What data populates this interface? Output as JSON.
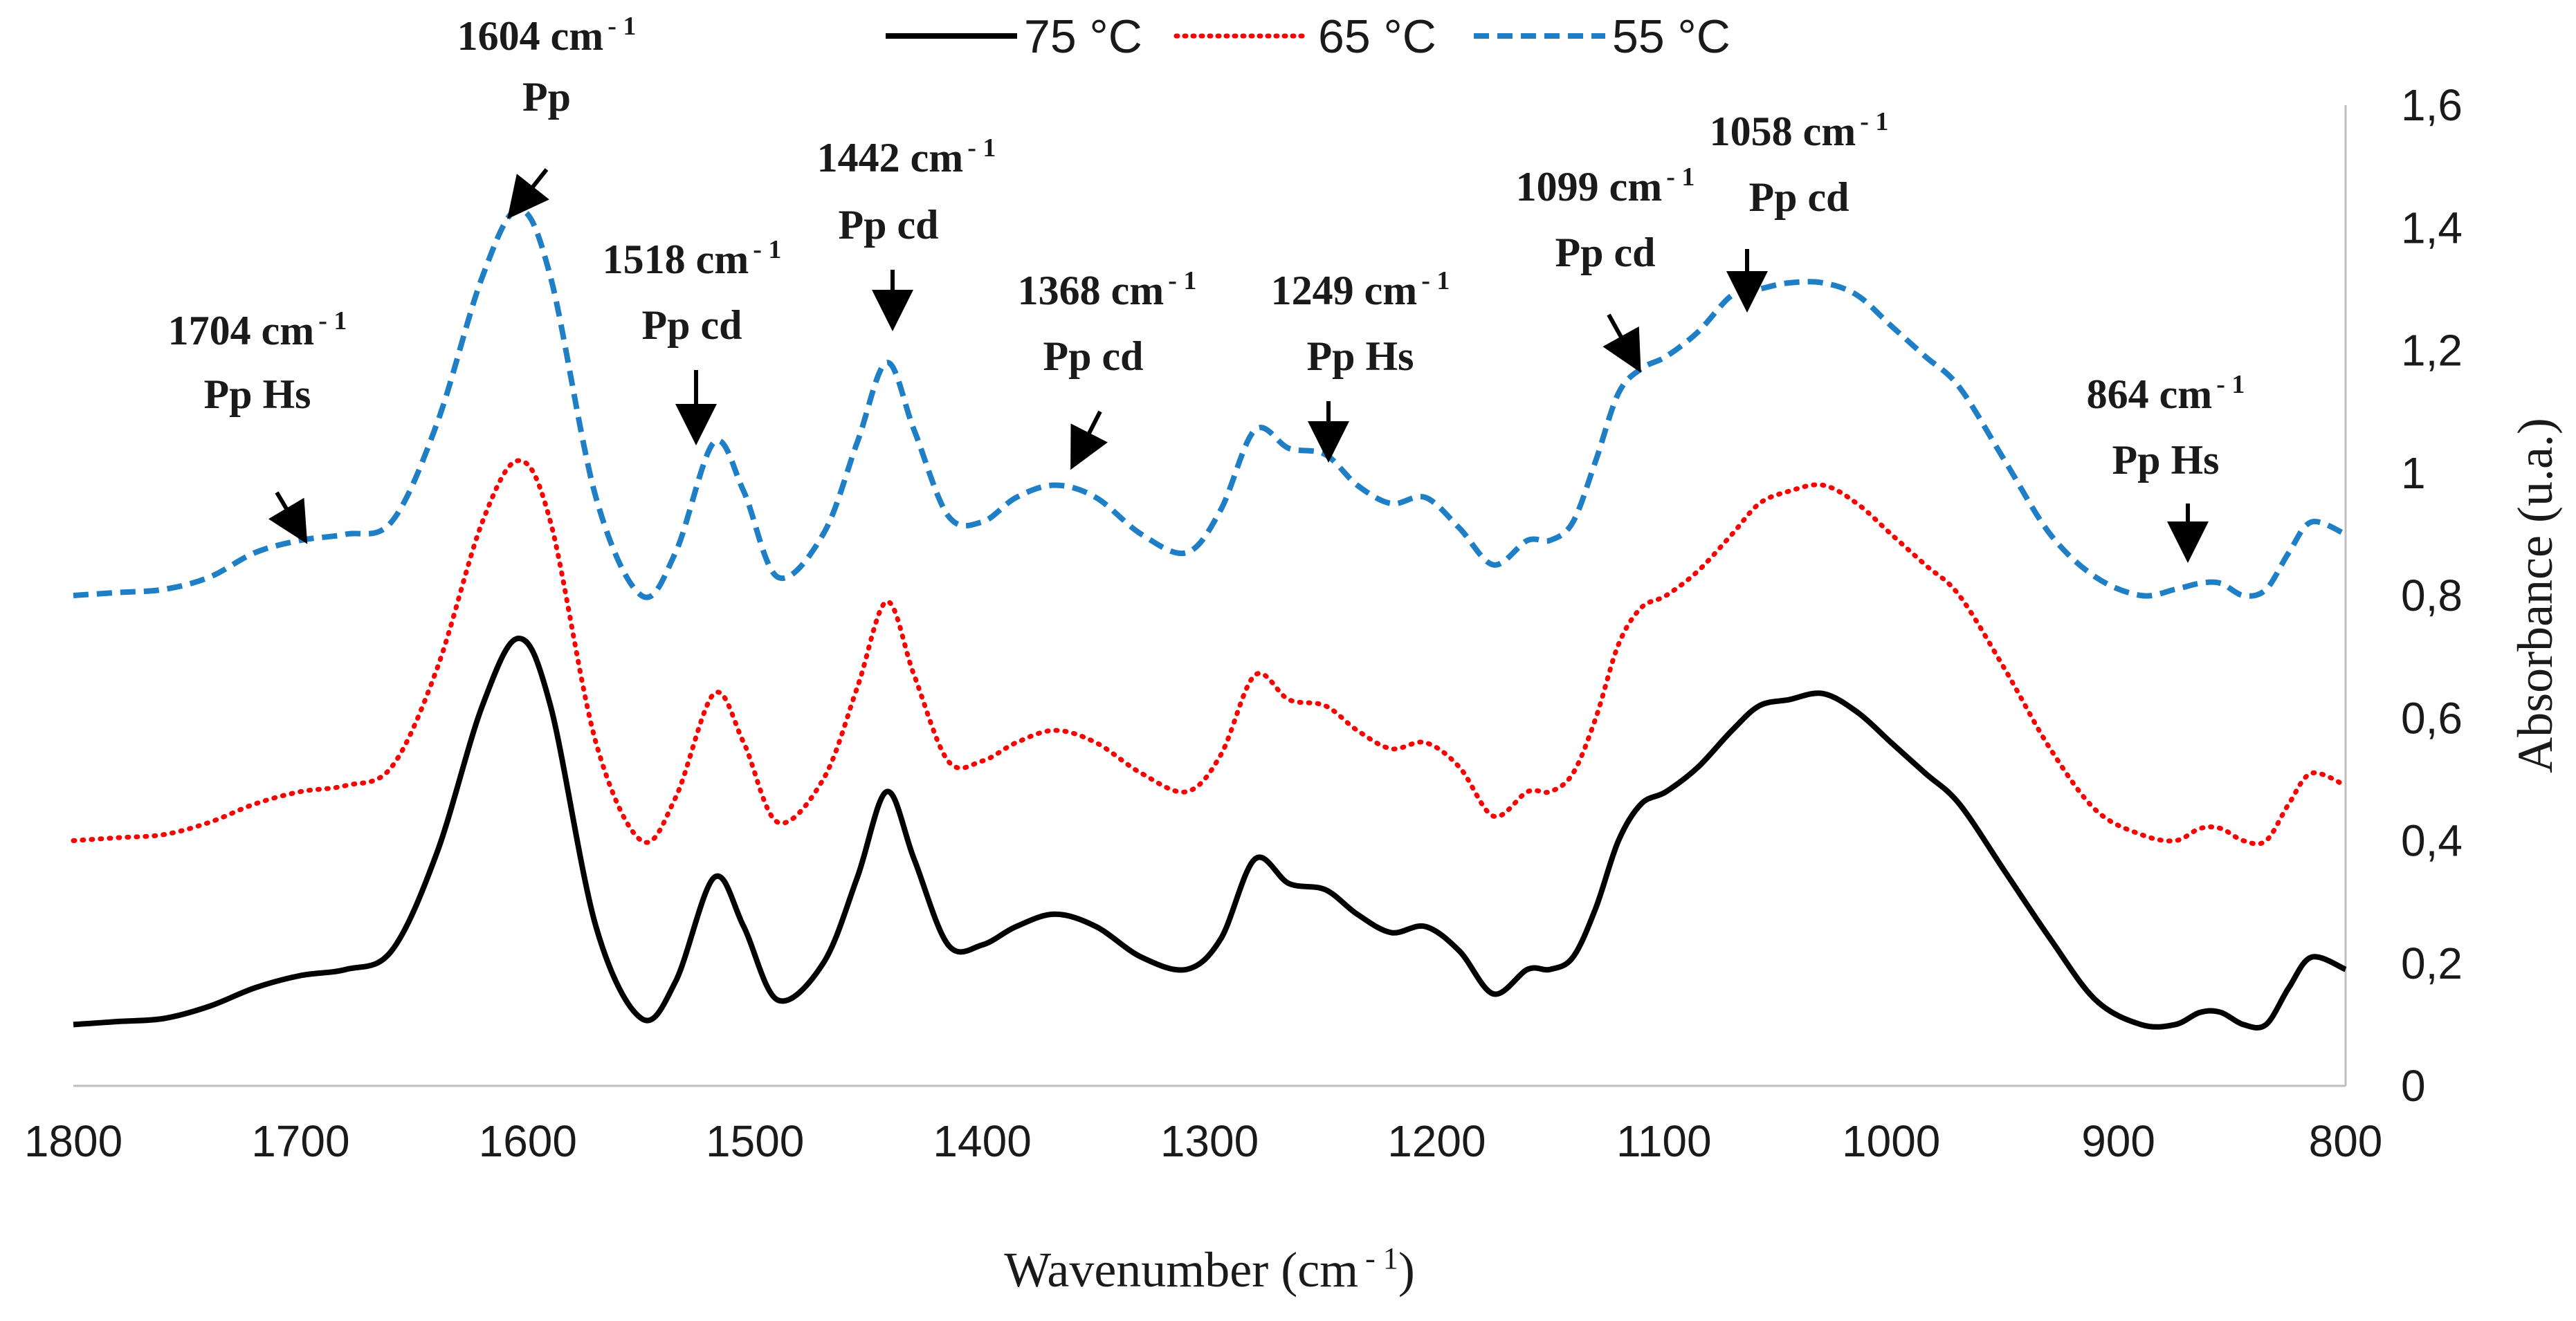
{
  "chart_data": {
    "type": "line",
    "title": "",
    "xlabel": "Wavenumber (cm",
    "xlabel_sup": "- 1",
    "xlabel_close": ")",
    "ylabel": "Absorbance (u.a.)",
    "xlim": [
      1800,
      800
    ],
    "ylim": [
      0,
      1.6
    ],
    "x_ticks": [
      "1800",
      "1700",
      "1600",
      "1500",
      "1400",
      "1300",
      "1200",
      "1100",
      "1000",
      "900",
      "800"
    ],
    "y_ticks": [
      "0",
      "0,2",
      "0,4",
      "0,6",
      "0,8",
      "1",
      "1,2",
      "1,4",
      "1,6"
    ],
    "grid": false,
    "legend_position": "top",
    "series": [
      {
        "name": "75 °C",
        "color": "#000000",
        "style": "solid",
        "x": [
          1800,
          1780,
          1760,
          1740,
          1720,
          1700,
          1680,
          1660,
          1640,
          1620,
          1604,
          1590,
          1570,
          1550,
          1535,
          1518,
          1505,
          1490,
          1470,
          1455,
          1442,
          1430,
          1415,
          1400,
          1385,
          1368,
          1350,
          1330,
          1310,
          1295,
          1280,
          1265,
          1249,
          1235,
          1220,
          1205,
          1190,
          1175,
          1160,
          1150,
          1140,
          1130,
          1120,
          1110,
          1099,
          1085,
          1070,
          1058,
          1045,
          1030,
          1015,
          1000,
          985,
          970,
          950,
          930,
          910,
          890,
          875,
          864,
          855,
          845,
          835,
          825,
          815,
          800
        ],
        "values": [
          0.1,
          0.105,
          0.11,
          0.13,
          0.16,
          0.18,
          0.19,
          0.22,
          0.38,
          0.62,
          0.73,
          0.62,
          0.26,
          0.11,
          0.17,
          0.34,
          0.26,
          0.14,
          0.2,
          0.34,
          0.48,
          0.37,
          0.23,
          0.23,
          0.26,
          0.28,
          0.26,
          0.21,
          0.19,
          0.24,
          0.37,
          0.33,
          0.32,
          0.28,
          0.25,
          0.26,
          0.22,
          0.15,
          0.19,
          0.19,
          0.21,
          0.29,
          0.4,
          0.46,
          0.48,
          0.52,
          0.58,
          0.62,
          0.63,
          0.64,
          0.61,
          0.56,
          0.51,
          0.46,
          0.35,
          0.24,
          0.14,
          0.1,
          0.1,
          0.12,
          0.12,
          0.1,
          0.1,
          0.16,
          0.21,
          0.19
        ]
      },
      {
        "name": "65 °C",
        "color": "#ff0000",
        "style": "dotted",
        "x": [
          1800,
          1780,
          1760,
          1740,
          1720,
          1700,
          1680,
          1660,
          1640,
          1620,
          1604,
          1590,
          1570,
          1550,
          1535,
          1518,
          1505,
          1490,
          1470,
          1455,
          1442,
          1430,
          1415,
          1400,
          1385,
          1368,
          1350,
          1330,
          1310,
          1295,
          1280,
          1265,
          1249,
          1235,
          1220,
          1205,
          1190,
          1175,
          1160,
          1150,
          1140,
          1130,
          1120,
          1110,
          1099,
          1085,
          1070,
          1058,
          1045,
          1030,
          1015,
          1000,
          985,
          970,
          950,
          930,
          910,
          890,
          875,
          864,
          855,
          845,
          835,
          825,
          815,
          800
        ],
        "values": [
          0.4,
          0.405,
          0.41,
          0.43,
          0.46,
          0.48,
          0.49,
          0.52,
          0.68,
          0.92,
          1.02,
          0.92,
          0.56,
          0.4,
          0.47,
          0.64,
          0.56,
          0.43,
          0.5,
          0.65,
          0.79,
          0.67,
          0.53,
          0.53,
          0.56,
          0.58,
          0.56,
          0.51,
          0.48,
          0.54,
          0.67,
          0.63,
          0.62,
          0.58,
          0.55,
          0.56,
          0.52,
          0.44,
          0.48,
          0.48,
          0.51,
          0.6,
          0.72,
          0.78,
          0.8,
          0.84,
          0.9,
          0.95,
          0.97,
          0.98,
          0.95,
          0.9,
          0.85,
          0.8,
          0.68,
          0.55,
          0.45,
          0.41,
          0.4,
          0.42,
          0.42,
          0.4,
          0.4,
          0.46,
          0.51,
          0.49
        ]
      },
      {
        "name": "55 °C",
        "color": "#1f7fc6",
        "style": "dashed",
        "x": [
          1800,
          1780,
          1760,
          1740,
          1720,
          1700,
          1680,
          1660,
          1640,
          1620,
          1604,
          1590,
          1570,
          1550,
          1535,
          1518,
          1505,
          1490,
          1470,
          1455,
          1442,
          1430,
          1415,
          1400,
          1385,
          1368,
          1350,
          1330,
          1310,
          1295,
          1280,
          1265,
          1249,
          1235,
          1220,
          1205,
          1190,
          1175,
          1160,
          1150,
          1140,
          1130,
          1120,
          1110,
          1099,
          1085,
          1070,
          1058,
          1045,
          1030,
          1015,
          1000,
          985,
          970,
          950,
          930,
          910,
          890,
          875,
          864,
          855,
          845,
          835,
          825,
          815,
          800
        ],
        "values": [
          0.8,
          0.805,
          0.81,
          0.83,
          0.87,
          0.89,
          0.9,
          0.92,
          1.08,
          1.32,
          1.43,
          1.32,
          0.96,
          0.8,
          0.87,
          1.05,
          0.97,
          0.83,
          0.9,
          1.05,
          1.18,
          1.07,
          0.93,
          0.92,
          0.96,
          0.98,
          0.96,
          0.9,
          0.87,
          0.94,
          1.07,
          1.04,
          1.03,
          0.98,
          0.95,
          0.96,
          0.91,
          0.85,
          0.89,
          0.89,
          0.92,
          1.02,
          1.13,
          1.17,
          1.19,
          1.23,
          1.29,
          1.3,
          1.31,
          1.31,
          1.29,
          1.24,
          1.19,
          1.14,
          1.02,
          0.9,
          0.83,
          0.8,
          0.81,
          0.82,
          0.82,
          0.8,
          0.81,
          0.87,
          0.92,
          0.9
        ]
      }
    ],
    "annotations": [
      {
        "id": "1604",
        "line1": "1604 cm",
        "sup": "- 1",
        "line2": "Pp",
        "x": 1604,
        "y": 1.43
      },
      {
        "id": "1704",
        "line1": "1704 cm",
        "sup": "- 1",
        "line2": "Pp Hs",
        "x": 1704,
        "y": 0.89
      },
      {
        "id": "1518",
        "line1": "1518 cm",
        "sup": "- 1",
        "line2": "Pp cd",
        "x": 1518,
        "y": 1.05
      },
      {
        "id": "1442",
        "line1": "1442 cm",
        "sup": "- 1",
        "line2": "Pp cd",
        "x": 1442,
        "y": 1.18
      },
      {
        "id": "1368",
        "line1": "1368 cm",
        "sup": "- 1",
        "line2": "Pp cd",
        "x": 1368,
        "y": 0.98
      },
      {
        "id": "1249",
        "line1": "1249 cm",
        "sup": "- 1",
        "line2": "Pp Hs",
        "x": 1249,
        "y": 1.03
      },
      {
        "id": "1099",
        "line1": "1099 cm",
        "sup": "- 1",
        "line2": "Pp cd",
        "x": 1099,
        "y": 1.19
      },
      {
        "id": "1058",
        "line1": "1058 cm",
        "sup": "- 1",
        "line2": "Pp cd",
        "x": 1058,
        "y": 1.3
      },
      {
        "id": "864",
        "line1": "864 cm",
        "sup": "- 1",
        "line2": "Pp Hs",
        "x": 864,
        "y": 0.82
      }
    ]
  }
}
